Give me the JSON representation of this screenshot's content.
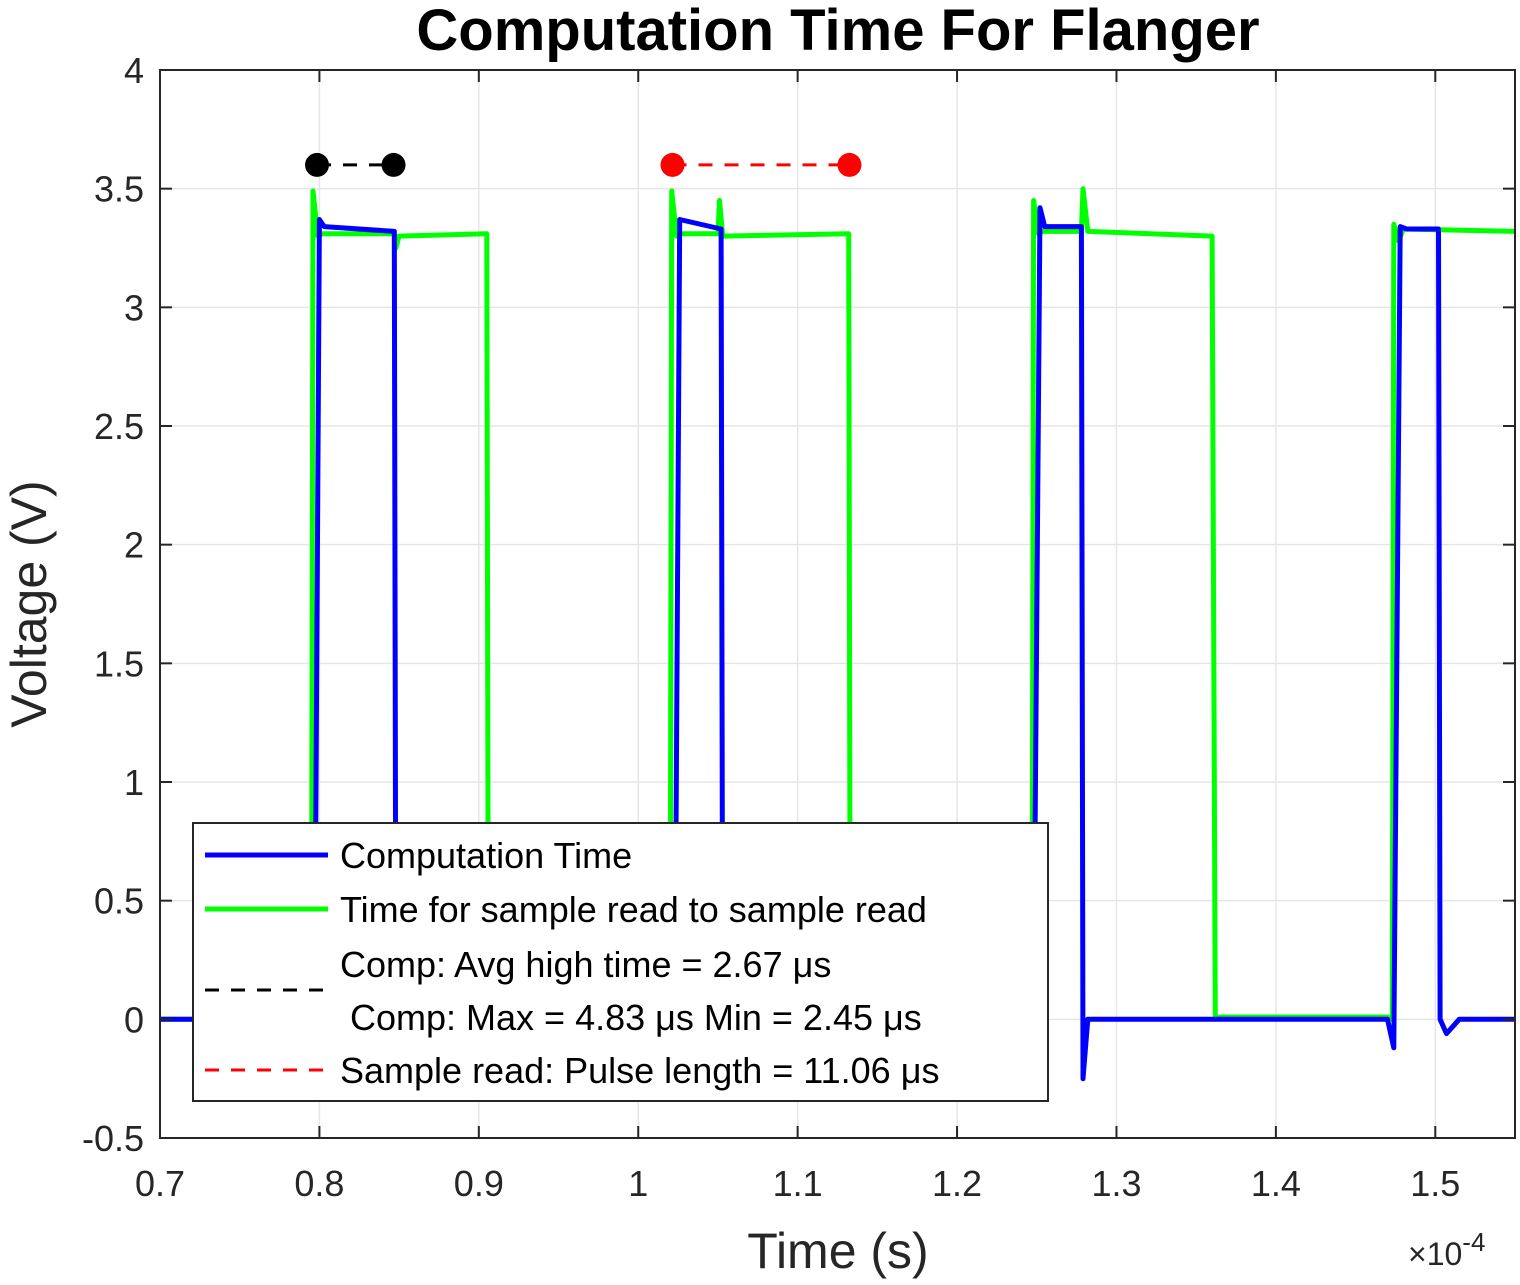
{
  "chart_data": {
    "type": "line",
    "title": "Computation Time For Flanger",
    "xlabel": "Time (s)",
    "ylabel": "Voltage (V)",
    "x_exponent": {
      "base": "×10",
      "power": "-4"
    },
    "xlim": [
      0.7,
      1.55
    ],
    "ylim": [
      -0.5,
      4
    ],
    "x_scale": 0.0001,
    "xticks": [
      0.7,
      0.8,
      0.9,
      1.0,
      1.1,
      1.2,
      1.3,
      1.4,
      1.5
    ],
    "xtick_labels": [
      "0.7",
      "0.8",
      "0.9",
      "1",
      "1.1",
      "1.2",
      "1.3",
      "1.4",
      "1.5"
    ],
    "yticks": [
      -0.5,
      0,
      0.5,
      1,
      1.5,
      2,
      2.5,
      3,
      3.5,
      4
    ],
    "ytick_labels": [
      "-0.5",
      "0",
      "0.5",
      "1",
      "1.5",
      "2",
      "2.5",
      "3",
      "3.5",
      "4"
    ],
    "grid": true,
    "legend_position": "bottom-left",
    "series": [
      {
        "name": "Computation Time",
        "color": "#0000ff",
        "x": [
          0.7,
          0.797,
          0.8,
          0.803,
          0.847,
          0.848,
          1.023,
          1.026,
          1.052,
          1.053,
          1.248,
          1.252,
          1.255,
          1.278,
          1.279,
          1.282,
          1.29,
          1.47,
          1.474,
          1.478,
          1.482,
          1.502,
          1.503,
          1.507,
          1.515,
          1.55
        ],
        "y": [
          0.0,
          0.0,
          3.37,
          3.34,
          3.32,
          0.0,
          0.0,
          3.37,
          3.33,
          0.0,
          0.0,
          3.42,
          3.34,
          3.34,
          -0.25,
          0.0,
          0.0,
          0.0,
          -0.12,
          3.34,
          3.33,
          3.33,
          0.0,
          -0.06,
          0.0,
          0.0
        ]
      },
      {
        "name": "Time for sample read to sample read",
        "color": "#00ff00",
        "x": [
          0.7,
          0.795,
          0.796,
          0.799,
          0.802,
          0.847,
          0.848,
          0.85,
          0.905,
          0.906,
          1.02,
          1.021,
          1.024,
          1.027,
          1.05,
          1.051,
          1.053,
          1.132,
          1.133,
          1.247,
          1.248,
          1.251,
          1.254,
          1.278,
          1.279,
          1.282,
          1.36,
          1.362,
          1.365,
          1.47,
          1.473,
          1.474,
          1.477,
          1.48,
          1.55
        ],
        "y": [
          0.0,
          0.0,
          3.49,
          3.3,
          3.31,
          3.31,
          3.25,
          3.3,
          3.31,
          0.0,
          0.0,
          3.49,
          3.3,
          3.31,
          3.31,
          3.45,
          3.3,
          3.31,
          0.0,
          0.0,
          3.45,
          3.31,
          3.32,
          3.32,
          3.5,
          3.32,
          3.3,
          0.0,
          0.01,
          0.01,
          0.0,
          3.35,
          3.28,
          3.33,
          3.32
        ]
      }
    ],
    "markers": [
      {
        "name": "Comp: Avg high time = 2.67 μs",
        "color": "#000000",
        "y": 3.6,
        "x_start": 0.7985,
        "x_end": 0.8465
      },
      {
        "name": "Sample read: Pulse length = 11.06 μs",
        "color": "#ff0000",
        "y": 3.6,
        "x_start": 1.0215,
        "x_end": 1.1325
      }
    ],
    "legend": [
      {
        "text": "Computation Time",
        "style": "solid",
        "color": "#0000ff"
      },
      {
        "text": "Time for sample read to sample read",
        "style": "solid",
        "color": "#00ff00"
      },
      {
        "text": "Comp: Avg high time = 2.67 μs",
        "text2": " Comp: Max = 4.83 μs Min = 2.45 μs",
        "style": "dashed",
        "color": "#000000"
      },
      {
        "text": "Sample read: Pulse length = 11.06 μs",
        "style": "dashed",
        "color": "#ff0000"
      }
    ]
  }
}
